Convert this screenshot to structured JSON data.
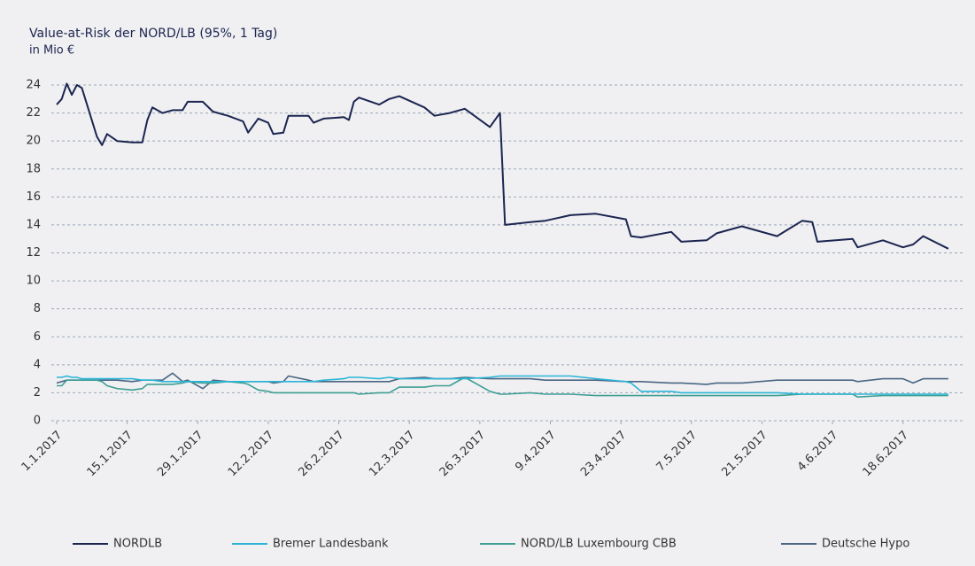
{
  "chart_data": {
    "type": "line",
    "title": "Value-at-Risk der NORD/LB (95%, 1 Tag)",
    "subtitle": "in Mio €",
    "x": [
      "1.1.2017",
      "2.1.2017",
      "3.1.2017",
      "4.1.2017",
      "5.1.2017",
      "6.1.2017",
      "9.1.2017",
      "10.1.2017",
      "11.1.2017",
      "13.1.2017",
      "16.1.2017",
      "18.1.2017",
      "19.1.2017",
      "20.1.2017",
      "22.1.2017",
      "24.1.2017",
      "26.1.2017",
      "27.1.2017",
      "30.1.2017",
      "1.2.2017",
      "4.2.2017",
      "7.2.2017",
      "8.2.2017",
      "10.2.2017",
      "12.2.2017",
      "13.2.2017",
      "15.2.2017",
      "16.2.2017",
      "20.2.2017",
      "21.2.2017",
      "23.2.2017",
      "27.2.2017",
      "28.2.2017",
      "1.3.2017",
      "2.3.2017",
      "6.3.2017",
      "8.3.2017",
      "10.3.2017",
      "15.3.2017",
      "17.3.2017",
      "20.3.2017",
      "23.3.2017",
      "28.3.2017",
      "30.3.2017",
      "31.3.2017",
      "5.4.2017",
      "8.4.2017",
      "13.4.2017",
      "18.4.2017",
      "24.4.2017",
      "25.4.2017",
      "27.4.2017",
      "3.5.2017",
      "5.5.2017",
      "10.5.2017",
      "12.5.2017",
      "17.5.2017",
      "24.5.2017",
      "29.5.2017",
      "31.5.2017",
      "1.6.2017",
      "8.6.2017",
      "9.6.2017",
      "14.6.2017",
      "18.6.2017",
      "20.6.2017",
      "22.6.2017",
      "27.6.2017"
    ],
    "series": [
      {
        "name": "NORDLB",
        "color": "#1b2550",
        "values": [
          22.6,
          23.0,
          24.1,
          23.3,
          24.0,
          23.8,
          20.3,
          19.7,
          20.5,
          20.0,
          19.9,
          19.9,
          21.5,
          22.4,
          22.0,
          22.2,
          22.2,
          22.8,
          22.8,
          22.1,
          21.8,
          21.4,
          20.6,
          21.6,
          21.3,
          20.5,
          20.6,
          21.8,
          21.8,
          21.3,
          21.6,
          21.7,
          21.5,
          22.8,
          23.1,
          22.6,
          23.0,
          23.2,
          22.4,
          21.8,
          22.0,
          22.3,
          21.0,
          22.0,
          14.0,
          14.2,
          14.3,
          14.7,
          14.8,
          14.4,
          13.2,
          13.1,
          13.5,
          12.8,
          12.9,
          13.4,
          13.9,
          13.2,
          14.3,
          14.2,
          12.8,
          13.0,
          12.4,
          12.9,
          12.4,
          12.6,
          13.2,
          12.3
        ]
      },
      {
        "name": "Bremer Landesbank",
        "color": "#2bb5d8",
        "values": [
          3.1,
          3.1,
          3.2,
          3.1,
          3.1,
          3.0,
          3.0,
          3.0,
          3.0,
          3.0,
          3.0,
          2.9,
          2.9,
          2.9,
          2.8,
          2.8,
          2.8,
          2.8,
          2.8,
          2.8,
          2.8,
          2.8,
          2.8,
          2.8,
          2.8,
          2.8,
          2.8,
          2.8,
          2.8,
          2.8,
          2.9,
          3.0,
          3.1,
          3.1,
          3.1,
          3.0,
          3.1,
          3.0,
          3.0,
          3.0,
          3.0,
          3.0,
          3.1,
          3.2,
          3.2,
          3.2,
          3.2,
          3.2,
          3.0,
          2.8,
          2.7,
          2.1,
          2.1,
          2.0,
          2.0,
          2.0,
          2.0,
          2.0,
          1.9,
          1.9,
          1.9,
          1.9,
          1.9,
          1.9,
          1.9,
          1.9,
          1.9,
          1.9
        ]
      },
      {
        "name": "NORD/LB Luxembourg CBB",
        "color": "#3e9e94",
        "values": [
          2.5,
          2.5,
          2.9,
          2.9,
          2.9,
          2.9,
          2.9,
          2.8,
          2.5,
          2.3,
          2.2,
          2.3,
          2.6,
          2.6,
          2.6,
          2.6,
          2.7,
          2.8,
          2.7,
          2.7,
          2.8,
          2.7,
          2.6,
          2.2,
          2.1,
          2.0,
          2.0,
          2.0,
          2.0,
          2.0,
          2.0,
          2.0,
          2.0,
          2.0,
          1.9,
          2.0,
          2.0,
          2.4,
          2.4,
          2.5,
          2.5,
          3.1,
          2.1,
          1.9,
          1.9,
          2.0,
          1.9,
          1.9,
          1.8,
          1.8,
          1.8,
          1.8,
          1.8,
          1.8,
          1.8,
          1.8,
          1.8,
          1.8,
          1.9,
          1.9,
          1.9,
          1.9,
          1.7,
          1.8,
          1.8,
          1.8,
          1.8,
          1.8
        ]
      },
      {
        "name": "Deutsche Hypo",
        "color": "#4a6684",
        "values": [
          2.7,
          2.8,
          2.9,
          2.9,
          2.9,
          2.9,
          2.9,
          2.9,
          2.9,
          2.9,
          2.8,
          2.9,
          2.9,
          2.9,
          2.9,
          3.4,
          2.8,
          2.9,
          2.3,
          2.9,
          2.8,
          2.8,
          2.8,
          2.8,
          2.8,
          2.7,
          2.8,
          3.2,
          2.9,
          2.8,
          2.8,
          2.8,
          2.8,
          2.8,
          2.8,
          2.8,
          2.8,
          3.0,
          3.1,
          3.0,
          3.0,
          3.1,
          3.0,
          3.0,
          3.0,
          3.0,
          2.9,
          2.9,
          2.9,
          2.8,
          2.8,
          2.8,
          2.7,
          2.7,
          2.6,
          2.7,
          2.7,
          2.9,
          2.9,
          2.9,
          2.9,
          2.9,
          2.8,
          3.0,
          3.0,
          2.7,
          3.0,
          3.0
        ]
      }
    ],
    "xlim": [
      "1.1.2017",
      "30.6.2017"
    ],
    "xticks": [
      "1.1.2017",
      "15.1.2017",
      "29.1.2017",
      "12.2.2017",
      "26.2.2017",
      "12.3.2017",
      "26.3.2017",
      "9.4.2017",
      "23.4.2017",
      "7.5.2017",
      "21.5.2017",
      "4.6.2017",
      "18.6.2017"
    ],
    "ylim": [
      0,
      24
    ],
    "yticks": [
      0,
      2,
      4,
      6,
      8,
      10,
      12,
      14,
      16,
      18,
      20,
      22,
      24
    ],
    "grid": true,
    "legend": "bottom"
  }
}
